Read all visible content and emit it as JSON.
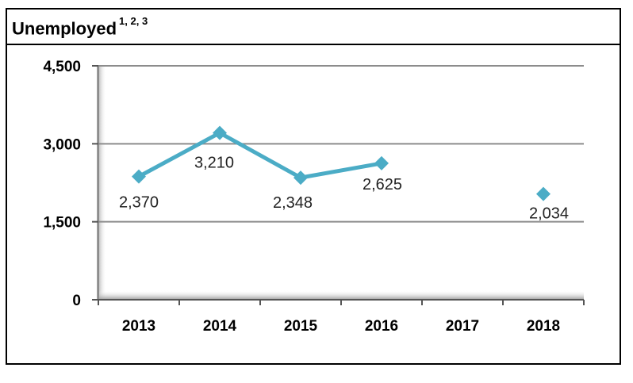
{
  "title": {
    "text": "Unemployed",
    "footnote_refs": "1, 2, 3"
  },
  "chart_data": {
    "type": "line",
    "title": "Unemployed",
    "xlabel": "",
    "ylabel": "",
    "categories": [
      "2013",
      "2014",
      "2015",
      "2016",
      "2017",
      "2018"
    ],
    "series": [
      {
        "values": [
          2370,
          3210,
          2348,
          2625,
          null,
          2034
        ],
        "data_labels": [
          "2,370",
          "3,210",
          "2,348",
          "2,625",
          "",
          "2,034"
        ],
        "color": "#4bacc6",
        "marker": "diamond"
      }
    ],
    "ylim": [
      0,
      4500
    ],
    "yticks": [
      0,
      1500,
      3000,
      4500
    ],
    "ytick_labels": [
      "0",
      "1,500",
      "3,000",
      "4,500"
    ],
    "grid": true,
    "legend": "none"
  },
  "colors": {
    "series": "#4bacc6",
    "grid": "#8c8c8c",
    "plot_shadow": "#bdbdbd"
  }
}
